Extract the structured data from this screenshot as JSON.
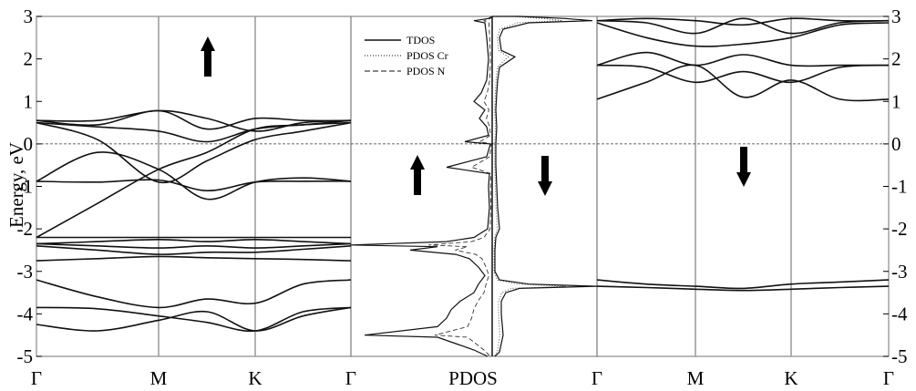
{
  "chart_data": {
    "type": "line",
    "ylabel": "Energy, eV",
    "ylim": [
      -5,
      3
    ],
    "yticks": [
      3,
      2,
      1,
      0,
      -1,
      -2,
      -3,
      -4,
      -5
    ],
    "fermi_level": 0,
    "panels": [
      {
        "id": "band-spin-up",
        "kpath": [
          "Γ",
          "M",
          "K",
          "Γ"
        ],
        "spin": "up",
        "note": "band energies in eV sampled at Γ, M/2, M, (M+K)/2, K, K/2, Γ",
        "series": [
          {
            "values": [
              -4.25,
              -4.4,
              -4.15,
              -3.95,
              -4.4,
              -4.05,
              -3.85
            ]
          },
          {
            "values": [
              -3.85,
              -3.88,
              -4.05,
              -4.2,
              -4.4,
              -3.95,
              -3.85
            ]
          },
          {
            "values": [
              -3.2,
              -3.6,
              -3.85,
              -3.65,
              -3.75,
              -3.3,
              -3.2
            ]
          },
          {
            "values": [
              -2.75,
              -2.7,
              -2.65,
              -2.68,
              -2.7,
              -2.72,
              -2.75
            ]
          },
          {
            "values": [
              -2.4,
              -2.5,
              -2.6,
              -2.55,
              -2.55,
              -2.48,
              -2.4
            ]
          },
          {
            "values": [
              -2.35,
              -2.4,
              -2.45,
              -2.4,
              -2.45,
              -2.4,
              -2.35
            ]
          },
          {
            "values": [
              -2.35,
              -2.3,
              -2.25,
              -2.3,
              -2.25,
              -2.3,
              -2.35
            ]
          },
          {
            "values": [
              -2.2,
              -2.2,
              -2.2,
              -2.2,
              -2.2,
              -2.2,
              -2.2
            ]
          },
          {
            "values": [
              -2.2,
              -1.4,
              -0.6,
              -0.2,
              0.35,
              0.45,
              0.55
            ]
          },
          {
            "values": [
              -0.88,
              -0.9,
              -0.85,
              -1.1,
              -0.9,
              -0.88,
              -0.88
            ]
          },
          {
            "values": [
              -0.88,
              -0.2,
              -0.6,
              -1.3,
              -0.9,
              -0.8,
              -0.88
            ]
          },
          {
            "values": [
              0.5,
              0.1,
              -0.9,
              -0.4,
              0.1,
              0.3,
              0.5
            ]
          },
          {
            "values": [
              0.5,
              0.4,
              0.3,
              0.05,
              0.35,
              0.45,
              0.5
            ]
          },
          {
            "values": [
              0.55,
              0.55,
              0.78,
              0.6,
              0.3,
              0.5,
              0.55
            ]
          },
          {
            "values": [
              0.55,
              0.45,
              0.78,
              0.35,
              0.6,
              0.55,
              0.55
            ]
          }
        ]
      },
      {
        "id": "pdos",
        "xlabel": "PDOS",
        "legend": [
          "TDOS",
          "PDOS Cr",
          "PDOS N"
        ],
        "legend_position": "top-left",
        "spin_labels": [
          "up",
          "down"
        ]
      },
      {
        "id": "band-spin-down",
        "kpath": [
          "Γ",
          "M",
          "K",
          "Γ"
        ],
        "spin": "down",
        "note": "band energies in eV sampled at Γ, M/2, M, (M+K)/2, K, K/2, Γ",
        "series": [
          {
            "values": [
              -3.35,
              -3.38,
              -3.42,
              -3.45,
              -3.42,
              -3.38,
              -3.35
            ]
          },
          {
            "values": [
              -3.2,
              -3.3,
              -3.35,
              -3.4,
              -3.3,
              -3.25,
              -3.2
            ]
          },
          {
            "values": [
              1.05,
              1.45,
              1.85,
              1.1,
              1.5,
              1.05,
              1.05
            ]
          },
          {
            "values": [
              1.85,
              1.8,
              1.45,
              1.7,
              1.45,
              1.8,
              1.85
            ]
          },
          {
            "values": [
              1.85,
              2.15,
              1.85,
              2.1,
              1.85,
              1.85,
              1.85
            ]
          },
          {
            "values": [
              2.85,
              2.5,
              2.3,
              2.35,
              2.5,
              2.8,
              2.85
            ]
          },
          {
            "values": [
              2.9,
              2.85,
              2.6,
              2.95,
              2.6,
              2.85,
              2.9
            ]
          },
          {
            "values": [
              2.9,
              2.95,
              2.9,
              2.8,
              2.95,
              2.9,
              2.9
            ]
          }
        ]
      }
    ]
  }
}
